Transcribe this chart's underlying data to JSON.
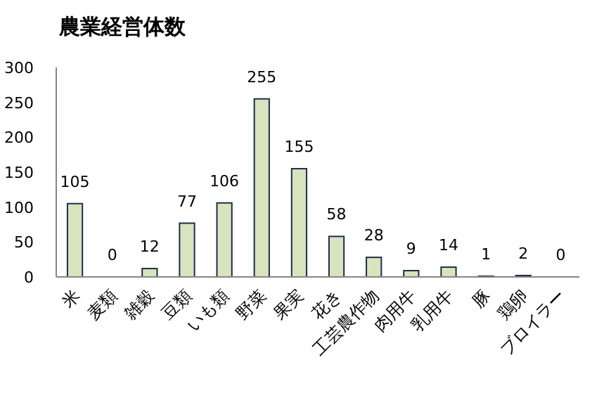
{
  "chart_data": {
    "type": "bar",
    "title": "農業経営体数",
    "categories": [
      "米",
      "麦類",
      "雑穀",
      "豆類",
      "いも類",
      "野菜",
      "果実",
      "花き",
      "工芸農作物",
      "肉用牛",
      "乳用牛",
      "豚",
      "鶏卵",
      "ブロイラー"
    ],
    "values": [
      105,
      0,
      12,
      77,
      106,
      255,
      155,
      58,
      28,
      9,
      14,
      1,
      2,
      0
    ],
    "color": "#d7e4bd",
    "ylim": [
      0,
      300
    ],
    "yticks": [
      0,
      50,
      100,
      150,
      200,
      250,
      300
    ],
    "grid": false,
    "data_labels": true
  }
}
